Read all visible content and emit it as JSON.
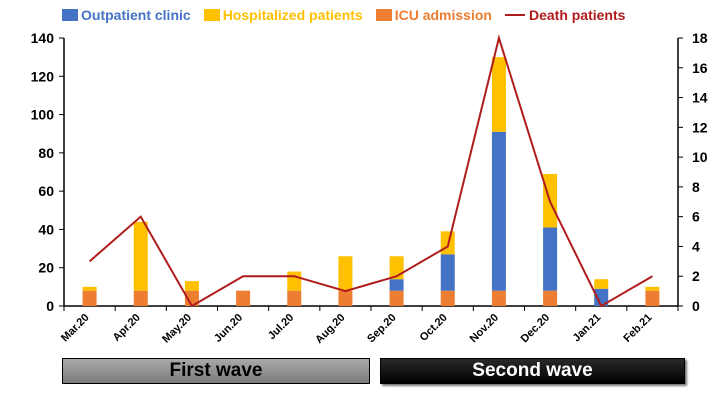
{
  "legend": {
    "outpatient": "Outpatient clinic",
    "hospitalized": "Hospitalized patients",
    "icu": "ICU admission",
    "death": "Death patients"
  },
  "waves": {
    "first": "First wave",
    "second": "Second wave"
  },
  "colors": {
    "outpatient": "#4472c4",
    "hospitalized": "#ffc000",
    "icu": "#ed7d31",
    "death": "#b01c1c"
  },
  "chart_data": {
    "type": "bar",
    "stacked": true,
    "categories": [
      "Mar.20",
      "Apr.20",
      "May.20",
      "Jun.20",
      "Jul.20",
      "Aug.20",
      "Sep.20",
      "Oct.20",
      "Nov.20",
      "Dec.20",
      "Jan.21",
      "Feb.21"
    ],
    "series": [
      {
        "name": "ICU admission",
        "axis": "left",
        "values": [
          8,
          8,
          8,
          8,
          8,
          8,
          8,
          8,
          8,
          8,
          0,
          8
        ]
      },
      {
        "name": "Outpatient clinic",
        "axis": "left",
        "values": [
          0,
          0,
          0,
          0,
          0,
          0,
          6,
          19,
          83,
          33,
          9,
          0
        ]
      },
      {
        "name": "Hospitalized patients",
        "axis": "left",
        "values": [
          2,
          36,
          5,
          0,
          10,
          18,
          12,
          12,
          39,
          28,
          5,
          2
        ]
      },
      {
        "name": "Death patients",
        "type": "line",
        "axis": "right",
        "values": [
          3,
          6,
          0,
          2,
          2,
          1,
          2,
          4,
          18,
          7,
          0,
          2
        ]
      }
    ],
    "ylim": [
      0,
      140
    ],
    "y_ticks": [
      "0",
      "20",
      "40",
      "60",
      "80",
      "100",
      "120",
      "140"
    ],
    "y2lim": [
      0,
      18
    ],
    "y2_ticks": [
      "0",
      "2",
      "4",
      "6",
      "8",
      "10",
      "12",
      "14",
      "16",
      "18"
    ],
    "grid": false,
    "legend_position": "top"
  }
}
